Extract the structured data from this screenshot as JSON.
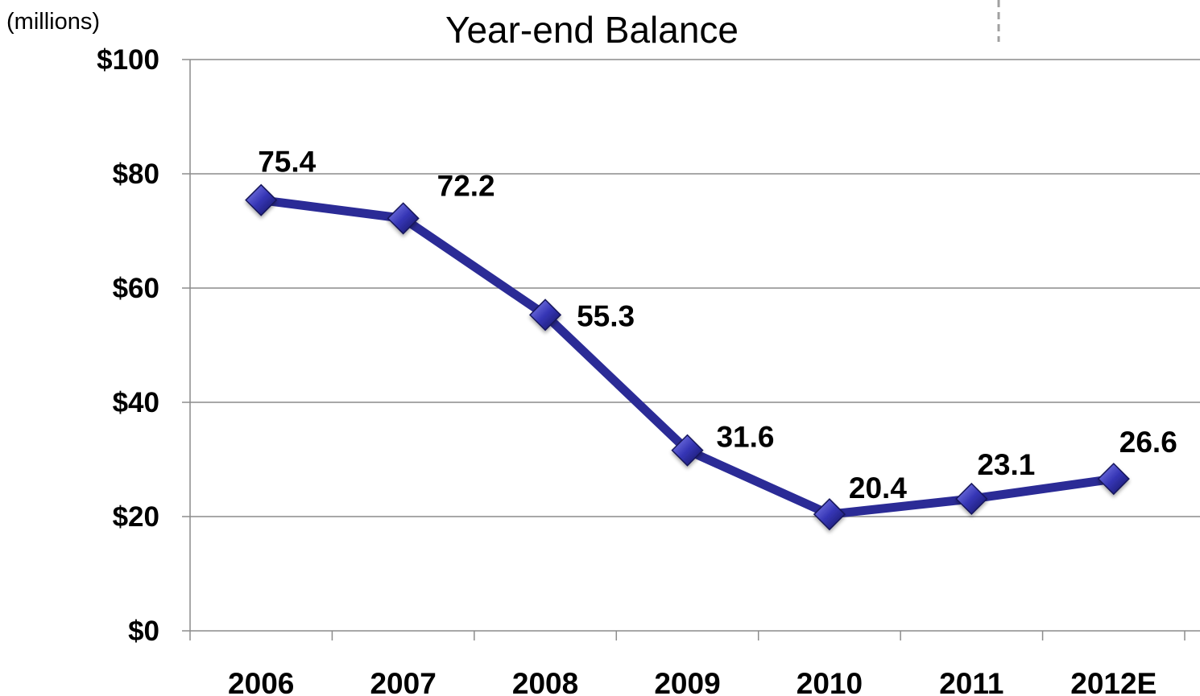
{
  "chart_data": {
    "type": "line",
    "title": "Year-end Balance",
    "unit_label": "(millions)",
    "categories": [
      "2006",
      "2007",
      "2008",
      "2009",
      "2010",
      "2011",
      "2012E"
    ],
    "series": [
      {
        "values": [
          75.4,
          72.2,
          55.3,
          31.6,
          20.4,
          23.1,
          26.6
        ],
        "data_labels": [
          "75.4",
          "72.2",
          "55.3",
          "31.6",
          "20.4",
          "23.1",
          "26.6"
        ]
      }
    ],
    "y_ticks": [
      {
        "value": 0,
        "label": "$0"
      },
      {
        "value": 20,
        "label": "$20"
      },
      {
        "value": 40,
        "label": "$40"
      },
      {
        "value": 60,
        "label": "$60"
      },
      {
        "value": 80,
        "label": "$80"
      },
      {
        "value": 100,
        "label": "$100"
      }
    ],
    "ylim": [
      0,
      100
    ],
    "grid": true,
    "legend": "none",
    "colors": {
      "line": "#2b2b96",
      "marker": "#3535b5",
      "marker_highlight": "#8a8af0",
      "marker_shadow": "#14145a",
      "grid": "#8c8c8c"
    },
    "marker": "diamond"
  }
}
